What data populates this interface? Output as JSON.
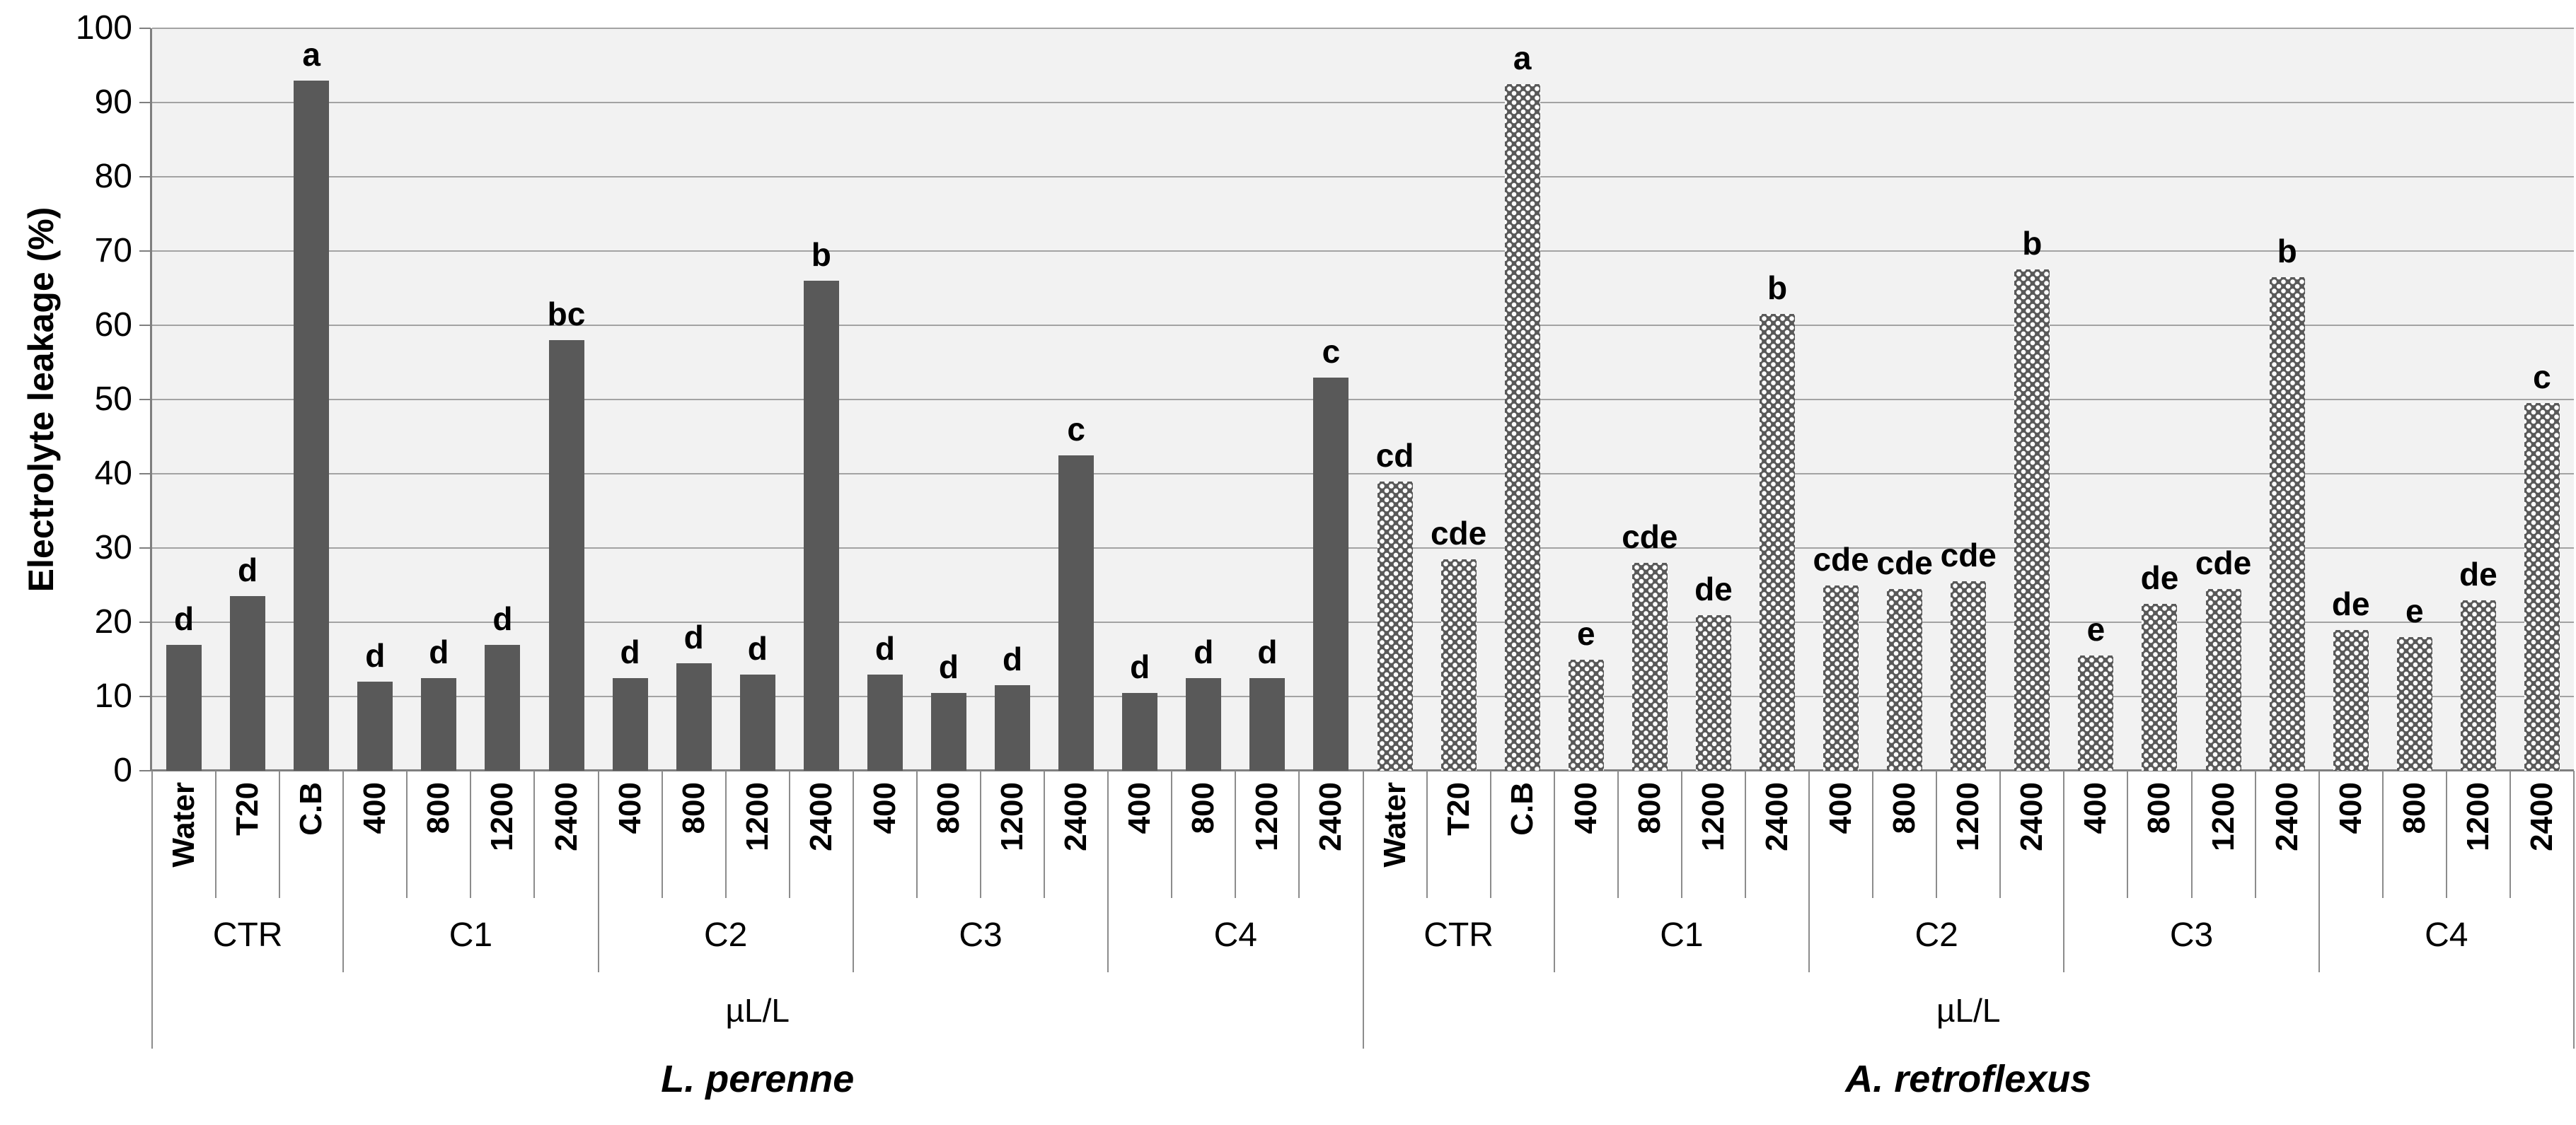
{
  "colors": {
    "bar_fill": "#595959",
    "pattern_dot": "#ffffff",
    "plot_background": "#f2f2f2",
    "gridline": "#a3a3a3",
    "axis_line": "#7f7f7f",
    "text": "#000000"
  },
  "chart_data": {
    "type": "bar",
    "title": "",
    "ylabel": "Electrolyte leakage (%)",
    "xlabel": "",
    "ylim": [
      0,
      100
    ],
    "ytick_step": 10,
    "yticks": [
      0,
      10,
      20,
      30,
      40,
      50,
      60,
      70,
      80,
      90,
      100
    ],
    "grid": true,
    "legend_position": "none",
    "annotation_style": "significance-letters-above-bars",
    "series": [
      {
        "name": "L. perenne",
        "fill_style": "solid",
        "unit_label": "µL/L",
        "groups": [
          {
            "label": "CTR",
            "categories": [
              "Water",
              "T20",
              "C.B"
            ],
            "values": [
              17,
              23.5,
              93
            ],
            "sig_letters": [
              "d",
              "d",
              "a"
            ]
          },
          {
            "label": "C1",
            "categories": [
              "400",
              "800",
              "1200",
              "2400"
            ],
            "values": [
              12,
              12.5,
              17,
              58
            ],
            "sig_letters": [
              "d",
              "d",
              "d",
              "bc"
            ]
          },
          {
            "label": "C2",
            "categories": [
              "400",
              "800",
              "1200",
              "2400"
            ],
            "values": [
              12.5,
              14.5,
              13,
              66
            ],
            "sig_letters": [
              "d",
              "d",
              "d",
              "b"
            ]
          },
          {
            "label": "C3",
            "categories": [
              "400",
              "800",
              "1200",
              "2400"
            ],
            "values": [
              13,
              10.5,
              11.5,
              42.5
            ],
            "sig_letters": [
              "d",
              "d",
              "d",
              "c"
            ]
          },
          {
            "label": "C4",
            "categories": [
              "400",
              "800",
              "1200",
              "2400"
            ],
            "values": [
              10.5,
              12.5,
              12.5,
              53
            ],
            "sig_letters": [
              "d",
              "d",
              "d",
              "c"
            ]
          }
        ]
      },
      {
        "name": "A. retroflexus",
        "fill_style": "checker",
        "unit_label": "µL/L",
        "groups": [
          {
            "label": "CTR",
            "categories": [
              "Water",
              "T20",
              "C.B"
            ],
            "values": [
              39,
              28.5,
              92.5
            ],
            "sig_letters": [
              "cd",
              "cde",
              "a"
            ]
          },
          {
            "label": "C1",
            "categories": [
              "400",
              "800",
              "1200",
              "2400"
            ],
            "values": [
              15,
              28,
              21,
              61.5
            ],
            "sig_letters": [
              "e",
              "cde",
              "de",
              "b"
            ]
          },
          {
            "label": "C2",
            "categories": [
              "400",
              "800",
              "1200",
              "2400"
            ],
            "values": [
              25,
              24.5,
              25.5,
              67.5
            ],
            "sig_letters": [
              "cde",
              "cde",
              "cde",
              "b"
            ]
          },
          {
            "label": "C3",
            "categories": [
              "400",
              "800",
              "1200",
              "2400"
            ],
            "values": [
              15.5,
              22.5,
              24.5,
              66.5
            ],
            "sig_letters": [
              "e",
              "de",
              "cde",
              "b"
            ]
          },
          {
            "label": "C4",
            "categories": [
              "400",
              "800",
              "1200",
              "2400"
            ],
            "values": [
              19,
              18,
              23,
              49.5
            ],
            "sig_letters": [
              "de",
              "e",
              "de",
              "c"
            ]
          }
        ]
      }
    ]
  }
}
